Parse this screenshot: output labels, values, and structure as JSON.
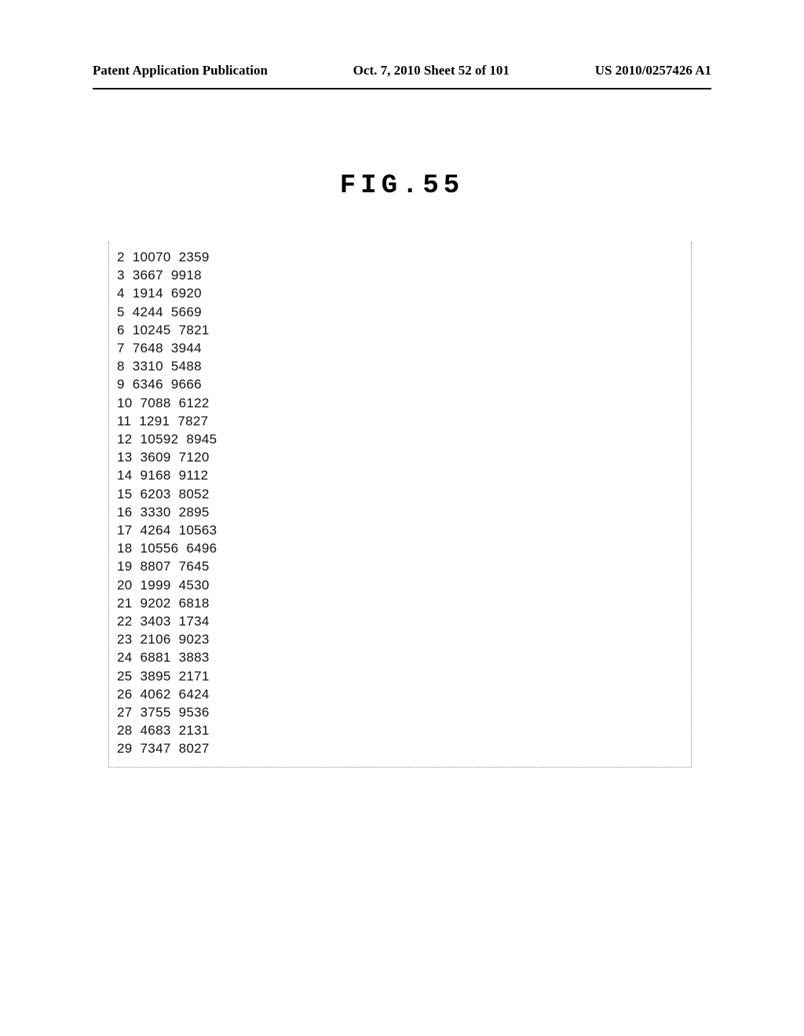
{
  "header": {
    "left": "Patent Application Publication",
    "center": "Oct. 7, 2010  Sheet 52 of 101",
    "right": "US 2010/0257426 A1"
  },
  "figure": {
    "title": "FIG.55",
    "title_fontsize": 34,
    "title_letterspacing": 6,
    "border_color": "#888888",
    "background_color": "#ffffff",
    "font_family_data": "Helvetica",
    "font_size_data": 17,
    "line_height_data": 23.2,
    "text_color": "#111111",
    "columns": [
      "idx",
      "v1",
      "v2"
    ],
    "rows": [
      [
        2,
        10070,
        2359
      ],
      [
        3,
        3667,
        9918
      ],
      [
        4,
        1914,
        6920
      ],
      [
        5,
        4244,
        5669
      ],
      [
        6,
        10245,
        7821
      ],
      [
        7,
        7648,
        3944
      ],
      [
        8,
        3310,
        5488
      ],
      [
        9,
        6346,
        9666
      ],
      [
        10,
        7088,
        6122
      ],
      [
        11,
        1291,
        7827
      ],
      [
        12,
        10592,
        8945
      ],
      [
        13,
        3609,
        7120
      ],
      [
        14,
        9168,
        9112
      ],
      [
        15,
        6203,
        8052
      ],
      [
        16,
        3330,
        2895
      ],
      [
        17,
        4264,
        10563
      ],
      [
        18,
        10556,
        6496
      ],
      [
        19,
        8807,
        7645
      ],
      [
        20,
        1999,
        4530
      ],
      [
        21,
        9202,
        6818
      ],
      [
        22,
        3403,
        1734
      ],
      [
        23,
        2106,
        9023
      ],
      [
        24,
        6881,
        3883
      ],
      [
        25,
        3895,
        2171
      ],
      [
        26,
        4062,
        6424
      ],
      [
        27,
        3755,
        9536
      ],
      [
        28,
        4683,
        2131
      ],
      [
        29,
        7347,
        8027
      ]
    ]
  }
}
